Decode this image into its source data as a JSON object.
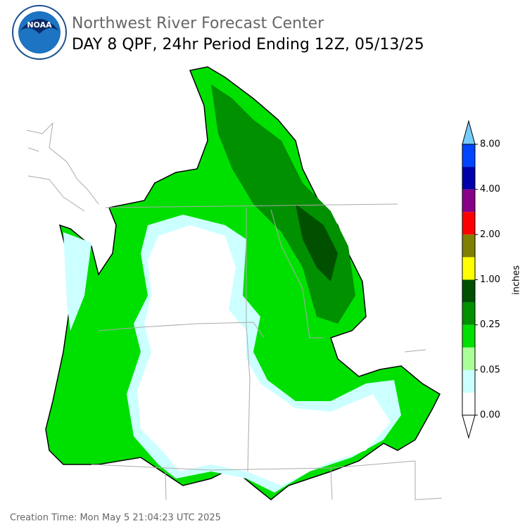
{
  "header": {
    "agency": "Northwest River Forecast Center",
    "title": "DAY 8 QPF, 24hr Period Ending 12Z, 05/13/25",
    "logo": "NOAA"
  },
  "colorbar": {
    "label": "inches",
    "colors": [
      "#ffffff",
      "#ccffff",
      "#aaff99",
      "#00e000",
      "#009000",
      "#005000",
      "#ffff00",
      "#808000",
      "#ff0000",
      "#880088",
      "#0000aa",
      "#0044ff"
    ],
    "extend_low_color": "#ffffff",
    "extend_high_color": "#77ccff",
    "ticks": [
      {
        "value": 0,
        "label": "0.00"
      },
      {
        "value": 0.05,
        "label": "0.05"
      },
      {
        "value": 0.25,
        "label": "0.25"
      },
      {
        "value": 1,
        "label": "1.00"
      },
      {
        "value": 2,
        "label": "2.00"
      },
      {
        "value": 4,
        "label": "4.00"
      },
      {
        "value": 8,
        "label": "8.00"
      }
    ]
  },
  "footer": {
    "creation": "Creation Time: Mon May 5 21:04:23 UTC 2025"
  }
}
